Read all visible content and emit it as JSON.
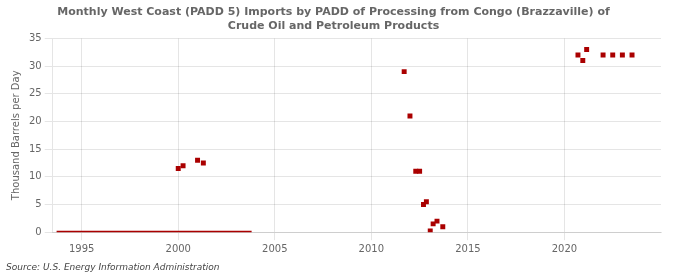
{
  "chart_data": {
    "type": "scatter",
    "title": "Monthly West Coast (PADD 5) Imports by PADD of Processing from Congo (Brazzaville) of\nCrude Oil and Petroleum Products",
    "ylabel": "Thousand Barrels per Day",
    "annotations": [
      "Source: U.S. Energy Information Administration"
    ],
    "xlim": [
      1993.5,
      2025
    ],
    "ylim": [
      0,
      35
    ],
    "xticks": [
      1995,
      2000,
      2005,
      2010,
      2015,
      2020
    ],
    "yticks": [
      0,
      5,
      10,
      15,
      20,
      25,
      30,
      35
    ],
    "grid": true,
    "series": [
      {
        "type": "line",
        "color": "#aa0000",
        "line_style": "solid",
        "x": [
          1993.7,
          2003.8
        ],
        "values": [
          0,
          0
        ]
      },
      {
        "type": "scatter",
        "color": "#aa0000",
        "marker": "square",
        "x": [
          2000.0,
          2000.25,
          2001.0,
          2001.3,
          2011.7,
          2012.0,
          2012.3,
          2012.5,
          2012.7,
          2012.85,
          2013.05,
          2013.2,
          2013.4,
          2013.7,
          2020.7,
          2020.95,
          2021.15,
          2022.0,
          2022.5,
          2023.0,
          2023.5
        ],
        "values": [
          11.5,
          12.0,
          13.0,
          12.5,
          29.0,
          21.0,
          11.0,
          11.0,
          5.0,
          5.5,
          0.2,
          1.5,
          2.0,
          1.0,
          32.0,
          31.0,
          33.0,
          32.0,
          32.0,
          32.0,
          32.0
        ]
      }
    ]
  }
}
